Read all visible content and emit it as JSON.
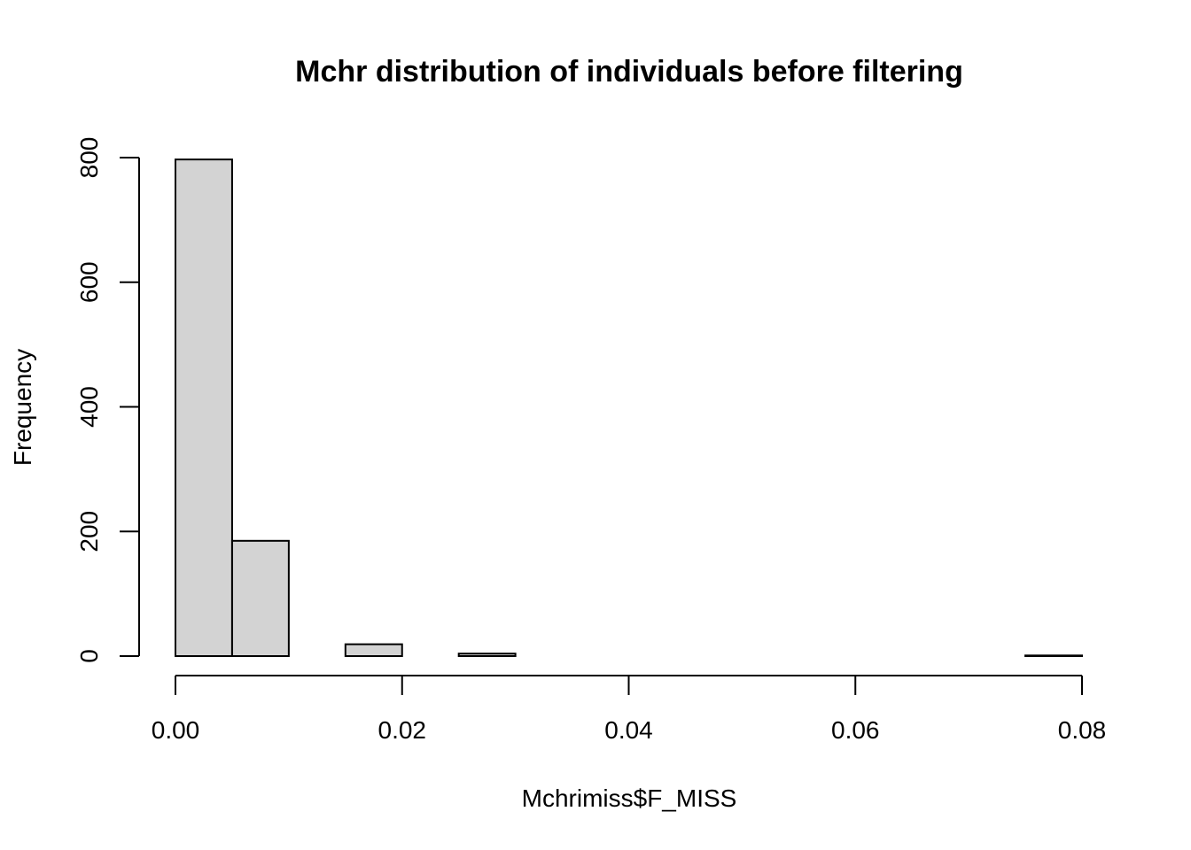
{
  "chart_data": {
    "type": "bar",
    "title": "Mchr distribution of individuals before filtering",
    "xlabel": "Mchrimiss$F_MISS",
    "ylabel": "Frequency",
    "bins": [
      {
        "start": 0.0,
        "end": 0.005,
        "count": 797
      },
      {
        "start": 0.005,
        "end": 0.01,
        "count": 185
      },
      {
        "start": 0.01,
        "end": 0.015,
        "count": 0
      },
      {
        "start": 0.015,
        "end": 0.02,
        "count": 19
      },
      {
        "start": 0.02,
        "end": 0.025,
        "count": 0
      },
      {
        "start": 0.025,
        "end": 0.03,
        "count": 4
      },
      {
        "start": 0.03,
        "end": 0.035,
        "count": 0
      },
      {
        "start": 0.035,
        "end": 0.04,
        "count": 0
      },
      {
        "start": 0.04,
        "end": 0.045,
        "count": 0
      },
      {
        "start": 0.045,
        "end": 0.05,
        "count": 0
      },
      {
        "start": 0.05,
        "end": 0.055,
        "count": 0
      },
      {
        "start": 0.055,
        "end": 0.06,
        "count": 0
      },
      {
        "start": 0.06,
        "end": 0.065,
        "count": 0
      },
      {
        "start": 0.065,
        "end": 0.07,
        "count": 0
      },
      {
        "start": 0.07,
        "end": 0.075,
        "count": 0
      },
      {
        "start": 0.075,
        "end": 0.08,
        "count": 1
      }
    ],
    "xlim": [
      0,
      0.08
    ],
    "ylim": [
      0,
      800
    ],
    "xticks": [
      "0.00",
      "0.02",
      "0.04",
      "0.06",
      "0.08"
    ],
    "yticks": [
      "0",
      "200",
      "400",
      "600",
      "800"
    ],
    "bar_color": "#d3d3d3",
    "grid": false,
    "legend": "none"
  }
}
